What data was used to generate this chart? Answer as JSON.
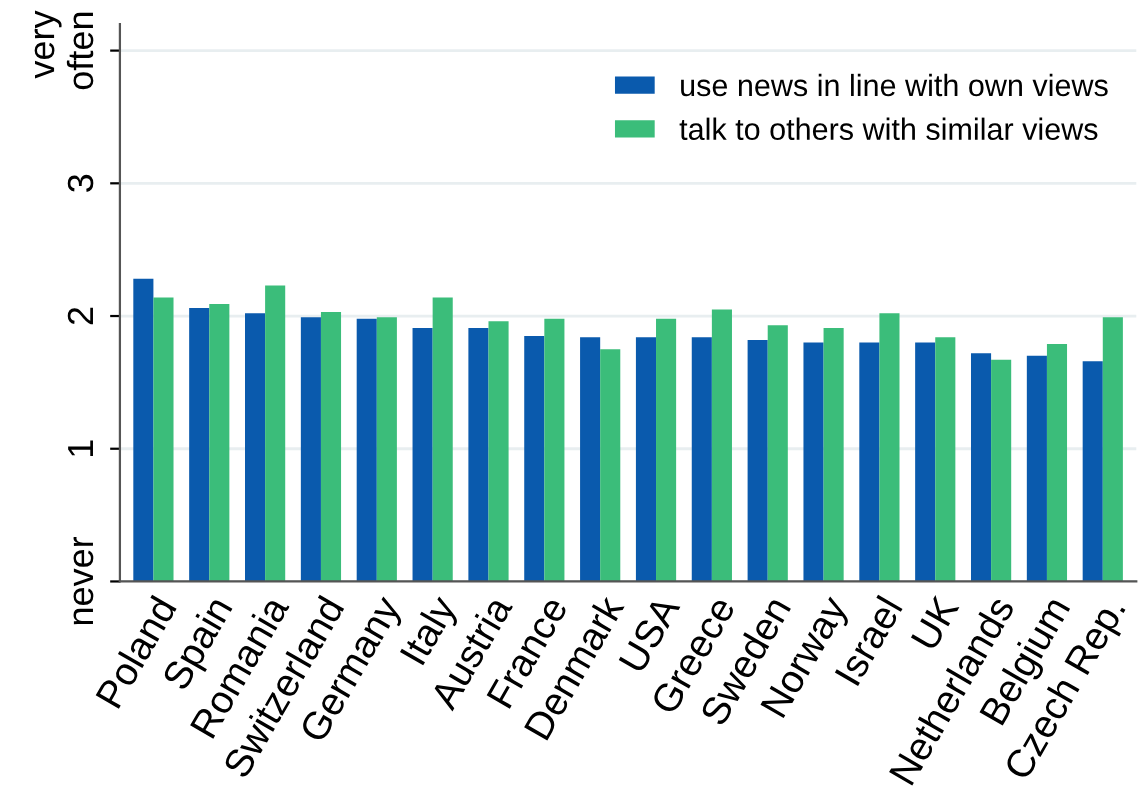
{
  "chart_data": {
    "type": "bar",
    "categories": [
      "Poland",
      "Spain",
      "Romania",
      "Switzerland",
      "Germany",
      "Italy",
      "Austria",
      "France",
      "Denmark",
      "USA",
      "Greece",
      "Sweden",
      "Norway",
      "Israel",
      "UK",
      "Netherlands",
      "Belgium",
      "Czech Rep."
    ],
    "series": [
      {
        "name": "use news in line with own views",
        "color": "#0a5aad",
        "values": [
          2.28,
          2.06,
          2.02,
          1.99,
          1.98,
          1.91,
          1.91,
          1.85,
          1.84,
          1.84,
          1.84,
          1.82,
          1.8,
          1.8,
          1.8,
          1.72,
          1.7,
          1.66
        ]
      },
      {
        "name": "talk to others with similar views",
        "color": "#3bbd7a",
        "values": [
          2.14,
          2.09,
          2.23,
          2.03,
          1.99,
          2.14,
          1.96,
          1.98,
          1.75,
          1.98,
          2.05,
          1.93,
          1.91,
          2.02,
          1.84,
          1.67,
          1.79,
          1.99
        ]
      }
    ],
    "ylim": [
      0,
      4.2
    ],
    "yticks": [
      {
        "value": 0,
        "label": "never"
      },
      1,
      2,
      3,
      {
        "value": 4,
        "label": "very often"
      }
    ],
    "grid": "y",
    "legend": "top right"
  }
}
